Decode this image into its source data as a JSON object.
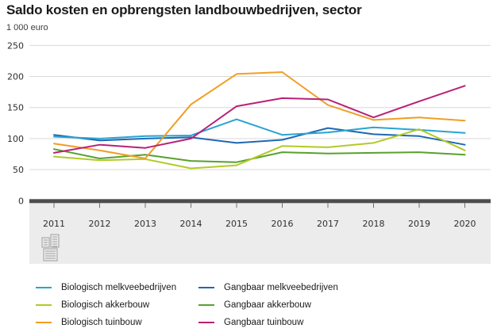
{
  "header": {
    "title": "Saldo kosten en opbrengsten landbouwbedrijven, sector",
    "unit": "1 000 euro"
  },
  "chart_data": {
    "type": "line",
    "title": "Saldo kosten en opbrengsten landbouwbedrijven, sector",
    "ylabel": "1 000 euro",
    "xlabel": "",
    "ylim": [
      0,
      250
    ],
    "ytick_step": 50,
    "yticks": [
      0,
      50,
      100,
      150,
      200,
      250
    ],
    "grid": true,
    "legend_position": "bottom-two-columns",
    "x": [
      2011,
      2012,
      2013,
      2014,
      2015,
      2016,
      2017,
      2018,
      2019,
      2020
    ],
    "series": [
      {
        "name": "Biologisch melkveebedrijven",
        "color": "#2aa3d2",
        "values": [
          103,
          100,
          104,
          105,
          131,
          106,
          110,
          118,
          114,
          109
        ]
      },
      {
        "name": "Biologisch akkerbouw",
        "color": "#b3ca26",
        "values": [
          71,
          65,
          67,
          52,
          57,
          88,
          86,
          93,
          115,
          81
        ]
      },
      {
        "name": "Biologisch tuinbouw",
        "color": "#f09e26",
        "values": [
          92,
          81,
          68,
          155,
          204,
          207,
          154,
          130,
          134,
          129
        ]
      },
      {
        "name": "Gangbaar melkveebedrijven",
        "color": "#1e68b2",
        "values": [
          106,
          97,
          100,
          102,
          93,
          98,
          117,
          107,
          104,
          90
        ]
      },
      {
        "name": "Gangbaar akkerbouw",
        "color": "#57a12f",
        "values": [
          83,
          68,
          74,
          64,
          62,
          78,
          76,
          77,
          78,
          74
        ]
      },
      {
        "name": "Gangbaar tuinbouw",
        "color": "#b92078",
        "values": [
          77,
          90,
          85,
          100,
          152,
          165,
          163,
          134,
          160,
          185
        ]
      }
    ],
    "draw_order": [
      4,
      3,
      0,
      1,
      2,
      5
    ]
  },
  "style_colors": {
    "gridline": "#d9d9d9",
    "axis_bar": "#4d4d4f",
    "axis_tick": "#707070",
    "band_background": "#ececec",
    "logo_grey": "#9e9e9e"
  },
  "footer": {
    "logo": "CBS"
  }
}
